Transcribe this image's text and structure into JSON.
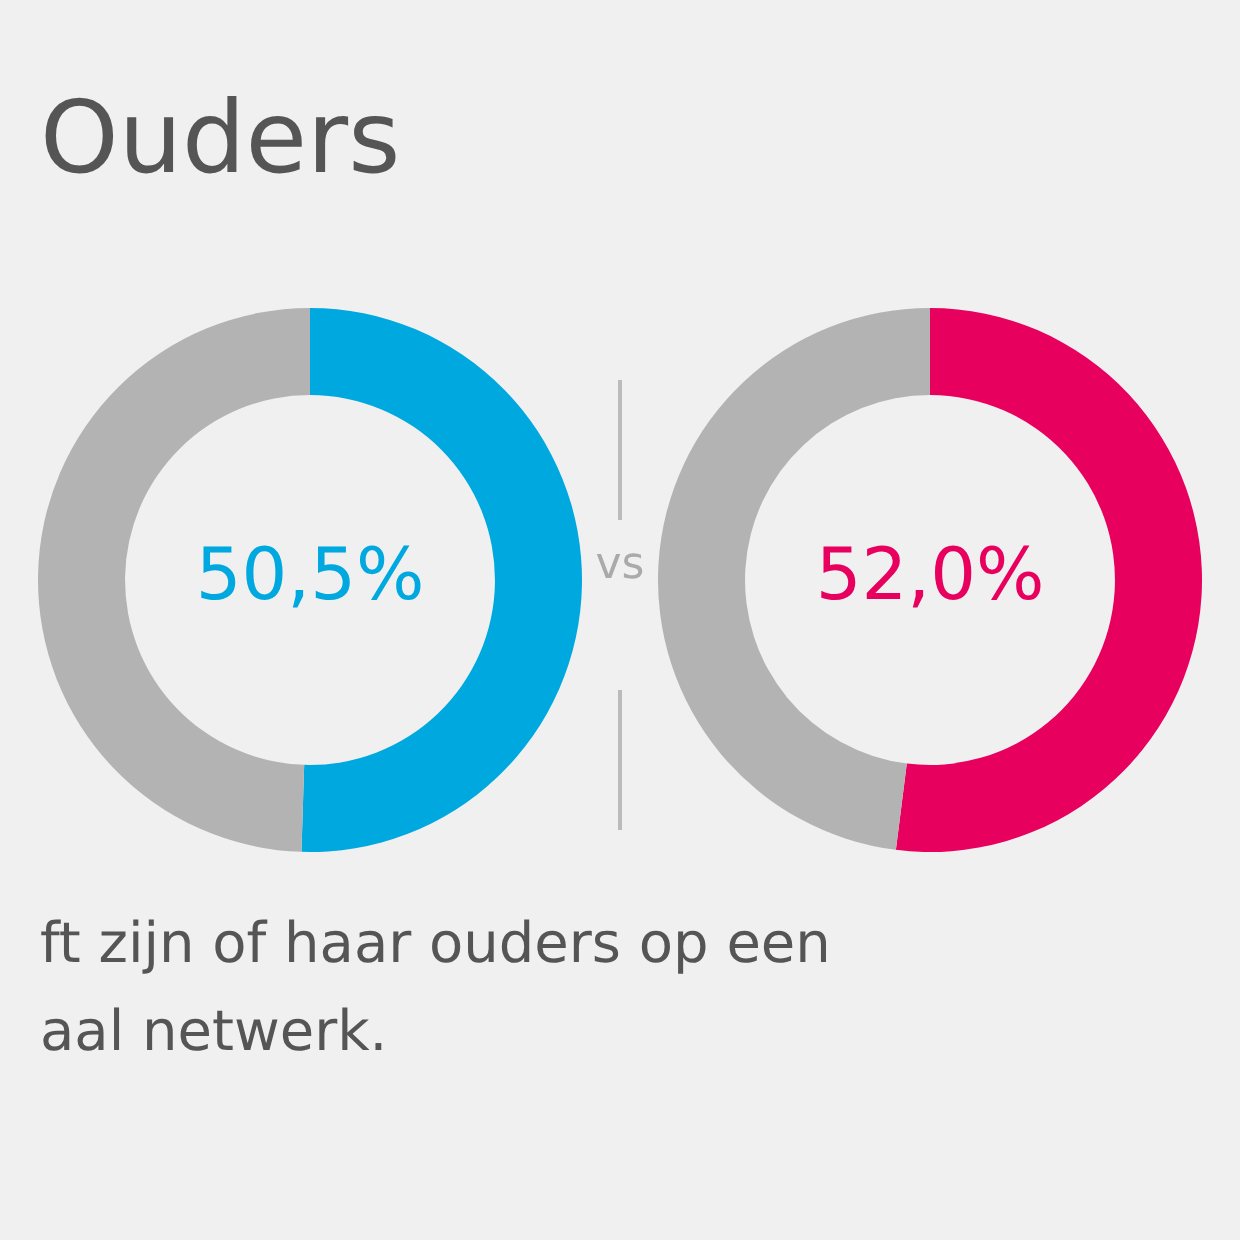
{
  "chart_data": [
    {
      "type": "donut",
      "title": "Ouders",
      "categories": [
        null,
        null
      ],
      "values": [
        50.5,
        49.5
      ],
      "colors": [
        "#00a8e0",
        "#b3b3b3"
      ],
      "value_labels": [
        "50,5%",
        null
      ],
      "annotations": [
        "ft zijn of haar ouders op een",
        "aal netwerk."
      ]
    },
    {
      "type": "donut",
      "categories": [
        null,
        null
      ],
      "values": [
        52.0,
        48.0
      ],
      "colors": [
        "#e8005e",
        "#b3b3b3"
      ],
      "value_labels": [
        "52,0%",
        null
      ],
      "annotations": [
        "vs"
      ]
    }
  ]
}
